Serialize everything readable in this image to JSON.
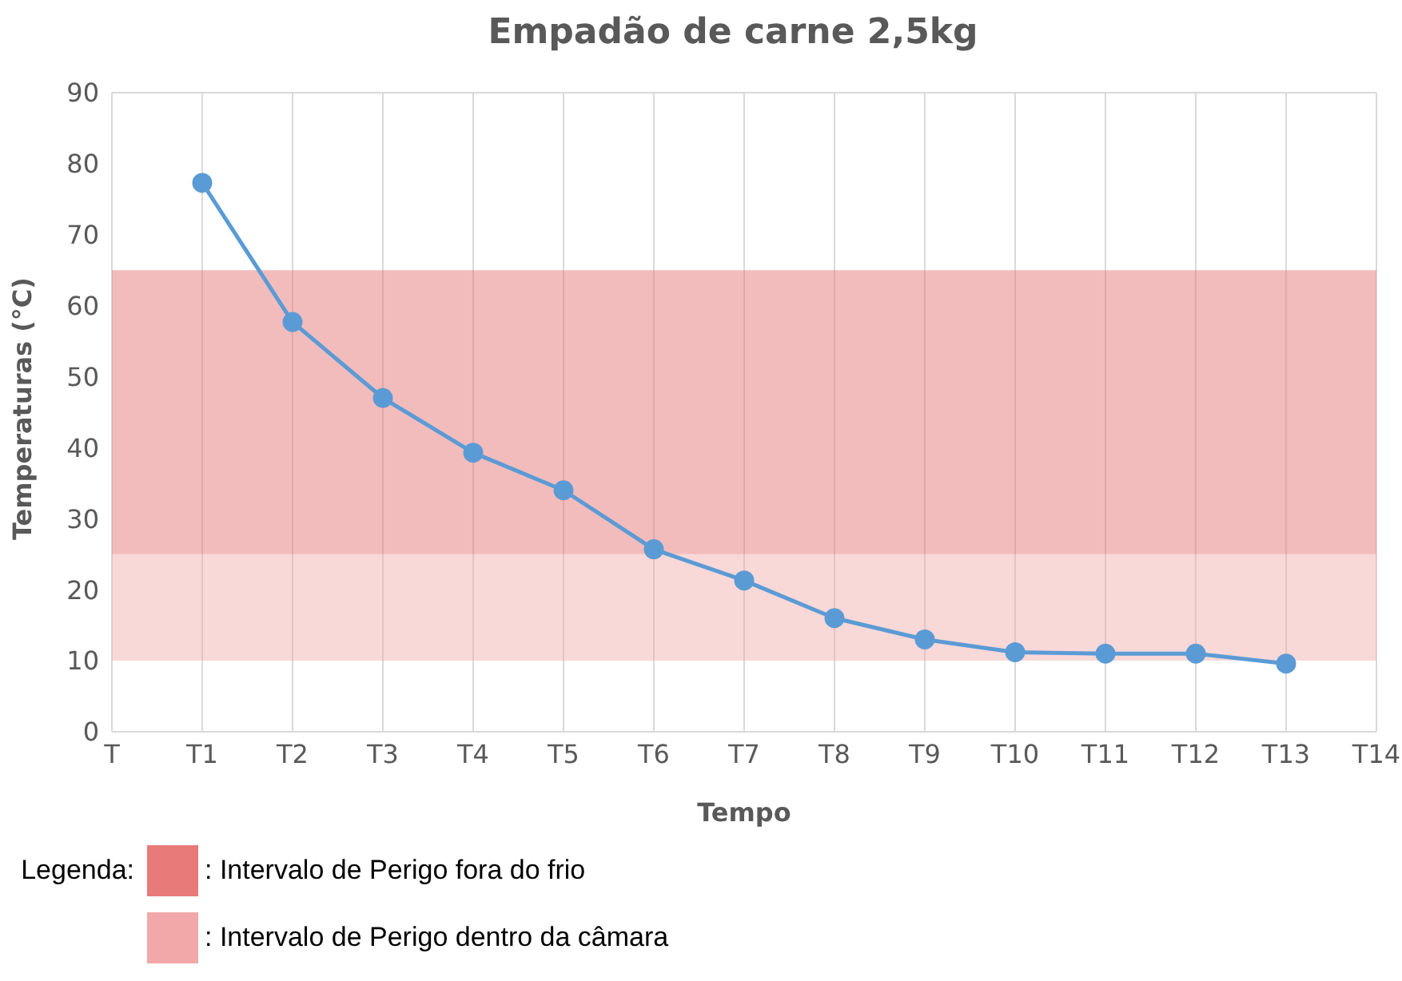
{
  "chart_data": {
    "type": "line",
    "title": "Empadão de carne 2,5kg",
    "xlabel": "Tempo",
    "ylabel": "Temperaturas (°C)",
    "legend_title": "Legenda:",
    "categories": [
      "T",
      "T1",
      "T2",
      "T3",
      "T4",
      "T5",
      "T6",
      "T7",
      "T8",
      "T9",
      "T10",
      "T11",
      "T12",
      "T13",
      "T14"
    ],
    "series": [
      {
        "color": "#5b9bd5",
        "values": [
          null,
          77.3,
          57.7,
          47,
          39.3,
          34,
          25.7,
          21.3,
          16,
          13,
          11.2,
          11,
          11,
          9.6,
          null
        ]
      }
    ],
    "ylim": [
      0,
      90
    ],
    "yticks": [
      0,
      10,
      20,
      30,
      40,
      50,
      60,
      70,
      80,
      90
    ],
    "grid": true,
    "marker": "circle",
    "line_style": "solid",
    "legend": "bottom left",
    "bands": [
      {
        "axis": "y",
        "from": 25,
        "to": 65,
        "label": ": Intervalo de Perigo fora do frio",
        "color": "#e87a7a"
      },
      {
        "axis": "y",
        "from": 10,
        "to": 25,
        "label": ": Intervalo de Perigo dentro da câmara",
        "color": "#f2a8a8"
      }
    ]
  }
}
